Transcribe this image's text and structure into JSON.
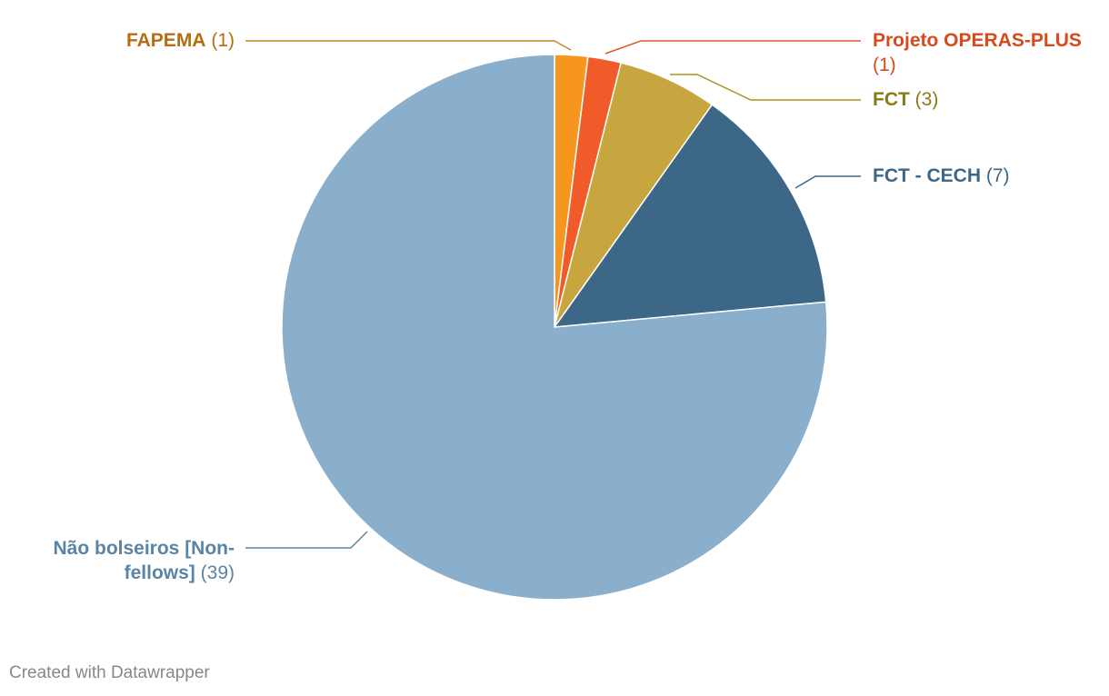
{
  "chart_data": {
    "type": "pie",
    "start_angle_deg": 0,
    "direction": "clockwise",
    "slices": [
      {
        "label": "FAPEMA",
        "value": 1,
        "color": "#f7961e",
        "text_color": "#b76c12"
      },
      {
        "label": "Projeto OPERAS-PLUS",
        "value": 1,
        "color": "#f15a29",
        "text_color": "#d84a1b"
      },
      {
        "label": "FCT",
        "value": 3,
        "color": "#c8a63f",
        "text_color": "#8a7a14"
      },
      {
        "label": "FCT - CECH",
        "value": 7,
        "color": "#3d6787",
        "text_color": "#3d6787"
      },
      {
        "label": "Não bolseiros [Non-fellows]",
        "value": 39,
        "color": "#89afcc",
        "text_color": "#5a84a3"
      }
    ]
  },
  "labels": {
    "fapema": {
      "name": "FAPEMA",
      "count": "(1)"
    },
    "operas": {
      "name": "Projeto OPERAS-PLUS",
      "count": "(1)"
    },
    "fct": {
      "name": "FCT",
      "count": "(3)"
    },
    "fct_cech": {
      "name": "FCT - CECH",
      "count": "(7)"
    },
    "nao_line1": "Não bolseiros [Non-",
    "nao_name2": "fellows]",
    "nao_count": "(39)"
  },
  "footer": "Created with Datawrapper"
}
